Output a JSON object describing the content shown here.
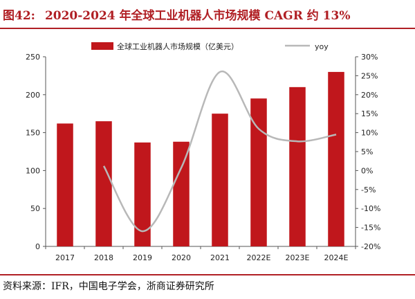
{
  "header": {
    "figure_label": "图42:",
    "title": "2020-2024 年全球工业机器人市场规模 CAGR 约 13%"
  },
  "footer": {
    "source": "资料来源：IFR，中国电子学会，浙商证券研究所"
  },
  "colors": {
    "bar": "#c0171c",
    "line": "#b8b8b8",
    "accent": "#b01f24"
  },
  "chart_data": {
    "type": "bar",
    "title": "2020-2024 年全球工业机器人市场规模 CAGR 约 13%",
    "categories": [
      "2017",
      "2018",
      "2019",
      "2020",
      "2021",
      "2022E",
      "2023E",
      "2024E"
    ],
    "series": [
      {
        "name": "全球工业机器人市场规模（亿美元）",
        "type": "bar",
        "axis": "left",
        "values": [
          162,
          165,
          137,
          138,
          175,
          195,
          210,
          230
        ]
      },
      {
        "name": "yoy",
        "type": "line",
        "axis": "right",
        "values": [
          null,
          1.2,
          -16,
          0.7,
          26,
          11,
          7.7,
          9.5
        ]
      }
    ],
    "ylim_left": [
      0,
      250
    ],
    "yticks_left": [
      "0",
      "50",
      "100",
      "150",
      "200",
      "250"
    ],
    "ylim_right": [
      -20,
      30
    ],
    "yticks_right": [
      "-20%",
      "-15%",
      "-10%",
      "-5%",
      "0%",
      "5%",
      "10%",
      "15%",
      "20%",
      "25%",
      "30%"
    ],
    "legend_position": "top-center",
    "grid": false
  }
}
